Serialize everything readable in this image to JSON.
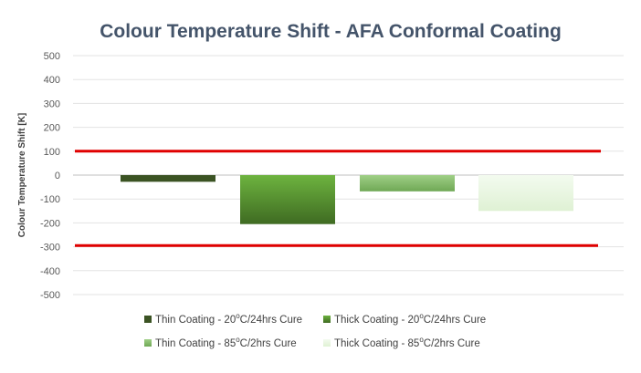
{
  "chart_data": {
    "type": "bar",
    "title": "Colour Temperature Shift - AFA Conformal Coating",
    "ylabel": "Colour Temperature Shift [K]",
    "xlabel": "",
    "ylim": [
      -500,
      500
    ],
    "yticks": [
      500,
      400,
      300,
      200,
      100,
      0,
      -100,
      -200,
      -300,
      -400,
      -500
    ],
    "ytick_labels": [
      "500",
      "400",
      "300",
      "200",
      "100",
      "0",
      "-100",
      "-200",
      "-300",
      "-400",
      "-500"
    ],
    "grid": true,
    "legend_position": "bottom",
    "series": [
      {
        "name": "Thin Coating - 20°C/24hrs Cure",
        "value": -28,
        "color": "#3b5323",
        "gradient": false
      },
      {
        "name": "Thick Coating - 20°C/24hrs Cure",
        "value": -205,
        "color_top": "#6db33f",
        "color_bottom": "#3f6b22",
        "gradient": true
      },
      {
        "name": "Thin Coating - 85°C/2hrs Cure",
        "value": -68,
        "color_top": "#9fcf86",
        "color_bottom": "#6fa855",
        "gradient": true
      },
      {
        "name": "Thick Coating - 85°C/2hrs Cure",
        "value": -150,
        "color_top": "#f3fbef",
        "color_bottom": "#dff1d4",
        "gradient": true
      }
    ],
    "legend": [
      {
        "prefix": "Thin Coating - 20",
        "sup": "o",
        "suffix": "C/24hrs Cure"
      },
      {
        "prefix": "Thick Coating - 20",
        "sup": "o",
        "suffix": "C/24hrs Cure"
      },
      {
        "prefix": "Thin Coating - 85",
        "sup": "o",
        "suffix": "C/2hrs Cure"
      },
      {
        "prefix": "Thick Coating - 85",
        "sup": "o",
        "suffix": "C/2hrs Cure"
      }
    ],
    "reference_lines": [
      {
        "value": 100,
        "color": "#e00000"
      },
      {
        "value": -295,
        "color": "#e00000"
      }
    ]
  }
}
